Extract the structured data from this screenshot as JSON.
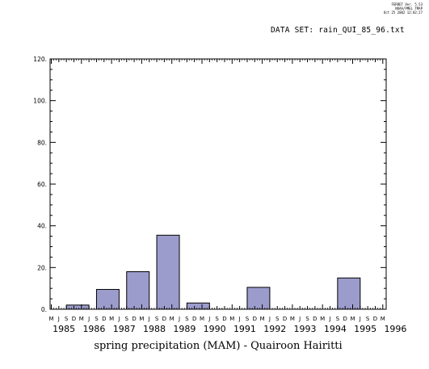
{
  "header": {
    "ferret_lines": [
      "FERRET Ver. 5.53",
      "NOAA/PMEL TMAP",
      "Oct 25 2002 12:02:27"
    ],
    "dataset_label": "DATA SET: rain_QUI_85_96.txt"
  },
  "chart_data": {
    "type": "bar",
    "title": "spring precipitation (MAM) - Quairoon Hairitti",
    "xlabel": "",
    "ylabel": "",
    "x_range_years": [
      1985,
      1996
    ],
    "ylim": [
      0,
      120
    ],
    "y_ticks": [
      0,
      20,
      40,
      60,
      80,
      100,
      120
    ],
    "y_tick_labels": [
      "0.",
      "20.",
      "40.",
      "60.",
      "80.",
      "100.",
      "120."
    ],
    "year_labels": [
      "1985",
      "1986",
      "1987",
      "1988",
      "1989",
      "1990",
      "1991",
      "1992",
      "1993",
      "1994",
      "1995",
      "1996"
    ],
    "month_letters": [
      "M",
      "J",
      "S",
      "D",
      "M",
      "J",
      "S",
      "D",
      "M",
      "J",
      "S",
      "D",
      "M",
      "J",
      "S",
      "D",
      "M",
      "J",
      "S",
      "D",
      "M",
      "J",
      "S",
      "D",
      "M",
      "J",
      "S",
      "D",
      "M",
      "J",
      "S",
      "D",
      "M",
      "J",
      "S",
      "D",
      "M",
      "J",
      "S",
      "D",
      "M",
      "J",
      "S",
      "D",
      "M"
    ],
    "categories": [
      "1985",
      "1986",
      "1987",
      "1988",
      "1989",
      "1990",
      "1991",
      "1992",
      "1993",
      "1994",
      "1995"
    ],
    "values": [
      2,
      9.5,
      18,
      35.5,
      3,
      0,
      10.5,
      0,
      0,
      15,
      0
    ],
    "bar_color": "#9c9ccc",
    "grid": false
  }
}
